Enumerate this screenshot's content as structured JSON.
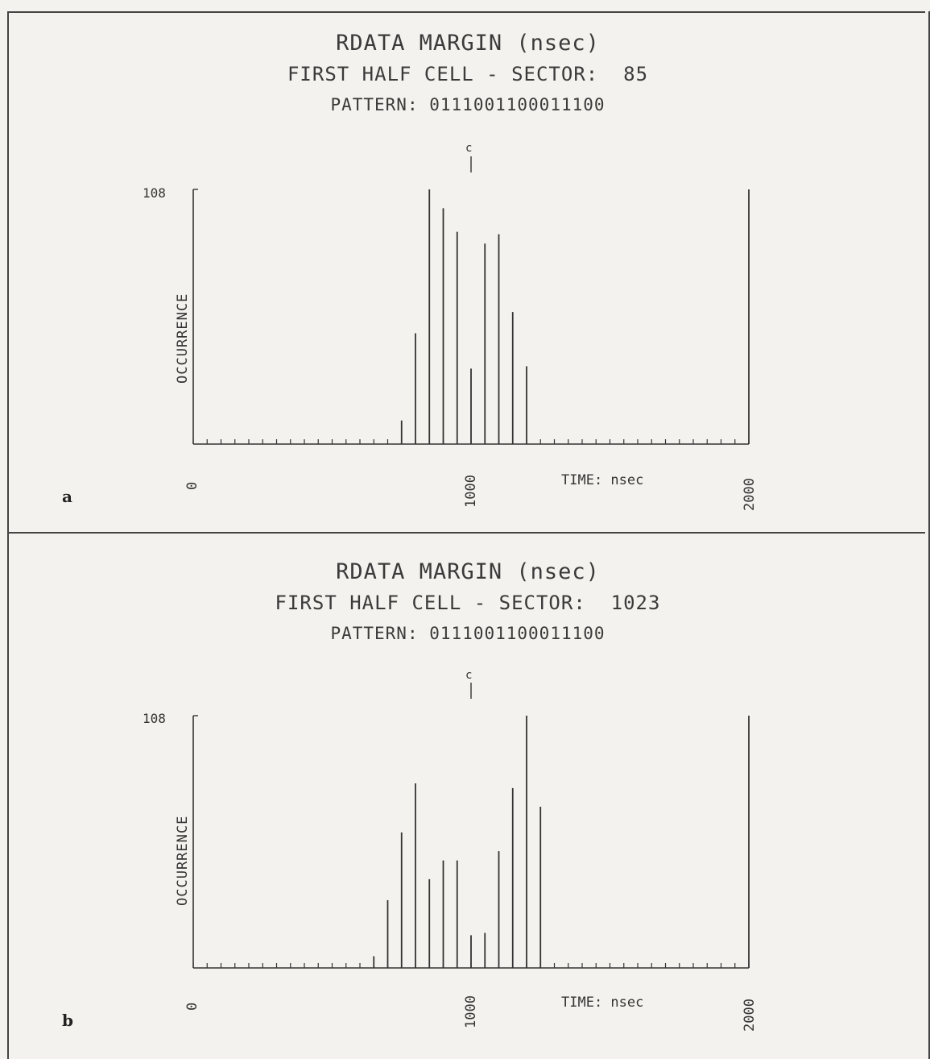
{
  "chart_data": [
    {
      "type": "bar",
      "panel_letter": "a",
      "title": "RDATA MARGIN (nsec)",
      "subtitle": "FIRST HALF CELL - SECTOR:  85",
      "pattern": "PATTERN: 0111001100011100",
      "ylabel": "OCCURRENCE",
      "xlabel": "TIME: nsec",
      "y_max_label": "108",
      "x_tick_labels": [
        "0",
        "1000",
        "2000"
      ],
      "center_marker": "c",
      "ylim": [
        0,
        108
      ],
      "xlim": [
        0,
        2000
      ],
      "bin_width": 50,
      "x": [
        750,
        800,
        850,
        900,
        950,
        1000,
        1050,
        1100,
        1150,
        1200,
        2000
      ],
      "values": [
        10,
        47,
        108,
        100,
        90,
        32,
        85,
        89,
        56,
        33,
        108
      ]
    },
    {
      "type": "bar",
      "panel_letter": "b",
      "title": "RDATA MARGIN (nsec)",
      "subtitle": "FIRST HALF CELL - SECTOR:  1023",
      "pattern": "PATTERN: 0111001100011100",
      "ylabel": "OCCURRENCE",
      "xlabel": "TIME: nsec",
      "y_max_label": "108",
      "x_tick_labels": [
        "0",
        "1000",
        "2000"
      ],
      "center_marker": "c",
      "ylim": [
        0,
        108
      ],
      "xlim": [
        0,
        2000
      ],
      "bin_width": 50,
      "x": [
        650,
        700,
        750,
        800,
        850,
        900,
        950,
        1000,
        1050,
        1100,
        1150,
        1200,
        1250,
        2000
      ],
      "values": [
        5,
        29,
        58,
        79,
        38,
        46,
        46,
        14,
        15,
        50,
        77,
        108,
        69,
        108
      ]
    }
  ]
}
